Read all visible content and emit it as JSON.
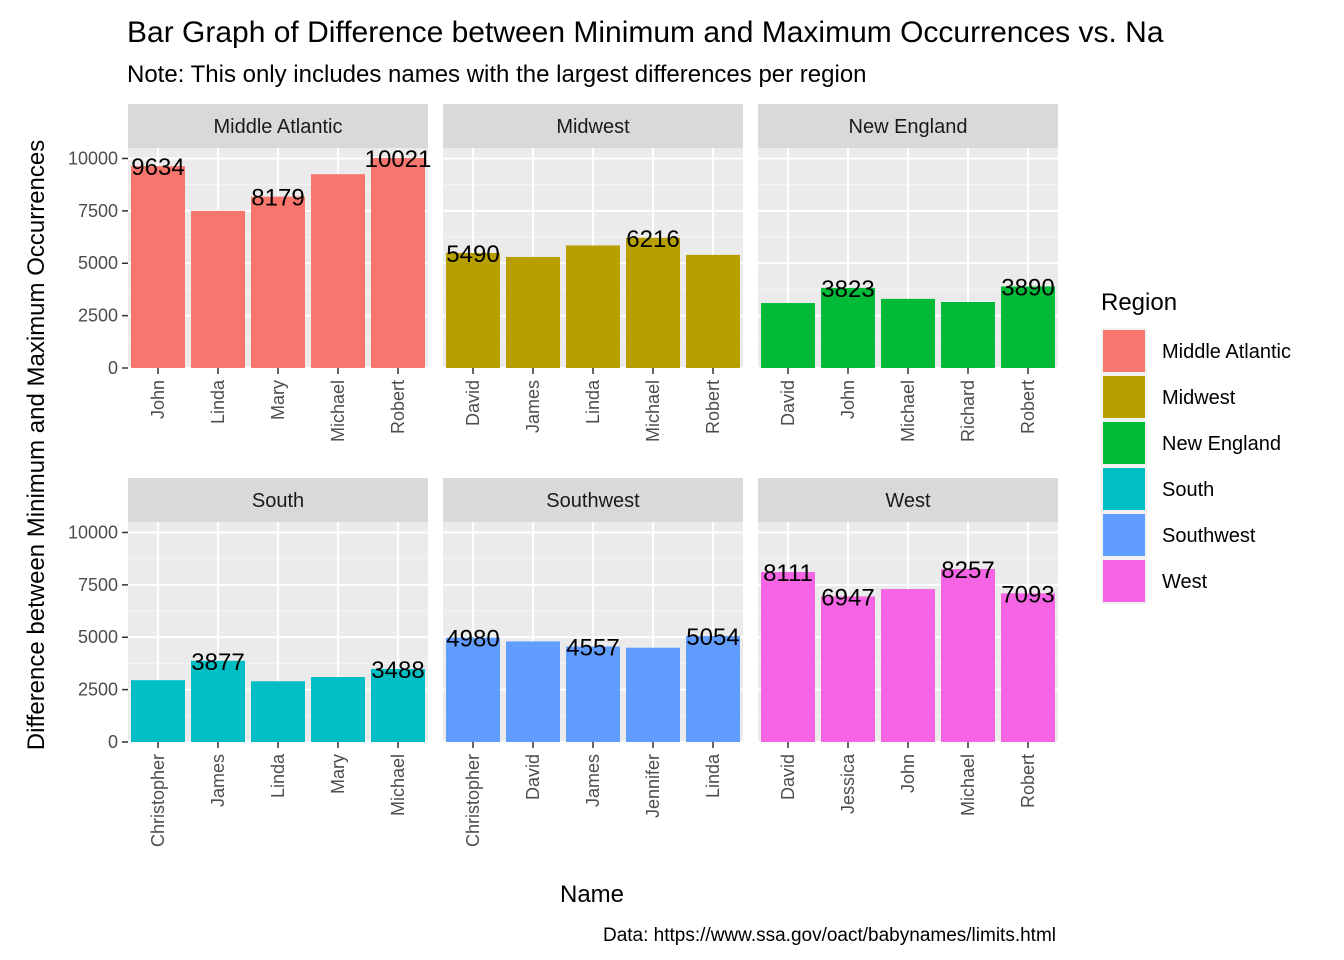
{
  "chart_data": {
    "type": "bar",
    "title": "Bar Graph of Difference between Minimum and Maximum Occurrences vs. Na",
    "subtitle": "Note: This only includes names with the largest differences per region",
    "xlabel": "Name",
    "ylabel": "Difference between Minimum and Maximum Occurrences",
    "caption": "Data: https://www.ssa.gov/oact/babynames/limits.html",
    "ylim": [
      0,
      10500
    ],
    "yticks": [
      0,
      2500,
      5000,
      7500,
      10000
    ],
    "grid": true,
    "legend": {
      "title": "Region",
      "position": "right",
      "items": [
        {
          "label": "Middle Atlantic",
          "color": "#F8766D"
        },
        {
          "label": "Midwest",
          "color": "#B79F00"
        },
        {
          "label": "New England",
          "color": "#00BA38"
        },
        {
          "label": "South",
          "color": "#00BFC4"
        },
        {
          "label": "Southwest",
          "color": "#619CFF"
        },
        {
          "label": "West",
          "color": "#F564E3"
        }
      ]
    },
    "facets": [
      {
        "region": "Middle Atlantic",
        "color": "#F8766D",
        "categories": [
          "John",
          "Linda",
          "Mary",
          "Michael",
          "Robert"
        ],
        "values": [
          9634,
          7500,
          8179,
          9250,
          10021
        ],
        "labels": [
          "9634",
          "",
          "8179",
          "",
          "10021"
        ]
      },
      {
        "region": "Midwest",
        "color": "#B79F00",
        "categories": [
          "David",
          "James",
          "Linda",
          "Michael",
          "Robert"
        ],
        "values": [
          5490,
          5300,
          5850,
          6216,
          5400
        ],
        "labels": [
          "5490",
          "",
          "",
          "6216",
          ""
        ]
      },
      {
        "region": "New England",
        "color": "#00BA38",
        "categories": [
          "David",
          "John",
          "Michael",
          "Richard",
          "Robert"
        ],
        "values": [
          3100,
          3823,
          3300,
          3150,
          3890
        ],
        "labels": [
          "",
          "3823",
          "",
          "",
          "3890"
        ]
      },
      {
        "region": "South",
        "color": "#00BFC4",
        "categories": [
          "Christopher",
          "James",
          "Linda",
          "Mary",
          "Michael"
        ],
        "values": [
          2950,
          3877,
          2900,
          3100,
          3488
        ],
        "labels": [
          "",
          "3877",
          "",
          "",
          "3488"
        ]
      },
      {
        "region": "Southwest",
        "color": "#619CFF",
        "categories": [
          "Christopher",
          "David",
          "James",
          "Jennifer",
          "Linda"
        ],
        "values": [
          4980,
          4800,
          4557,
          4500,
          5054
        ],
        "labels": [
          "4980",
          "",
          "4557",
          "",
          "5054"
        ]
      },
      {
        "region": "West",
        "color": "#F564E3",
        "categories": [
          "David",
          "Jessica",
          "John",
          "Michael",
          "Robert"
        ],
        "values": [
          8111,
          6947,
          7300,
          8257,
          7093
        ],
        "labels": [
          "8111",
          "6947",
          "",
          "8257",
          "7093"
        ]
      }
    ]
  }
}
